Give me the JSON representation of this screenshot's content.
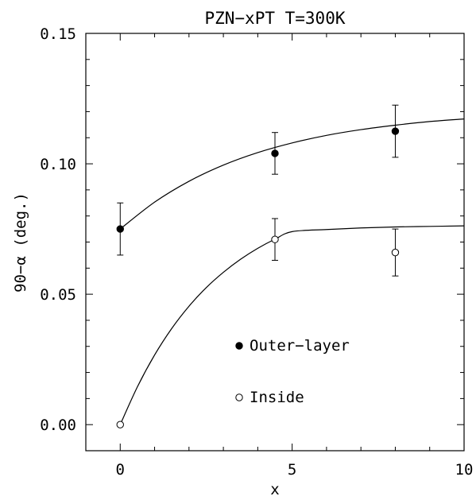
{
  "chart_data": {
    "type": "scatter",
    "title": "PZN−xPT T=300K",
    "xlabel": "x",
    "ylabel": "90−α (deg.)",
    "xlim": [
      -1,
      10
    ],
    "ylim": [
      -0.01,
      0.15
    ],
    "x_ticks": [
      0,
      5,
      10
    ],
    "x_tick_labels": [
      "0",
      "5",
      "10"
    ],
    "y_ticks": [
      0.0,
      0.05,
      0.1,
      0.15
    ],
    "y_tick_labels": [
      "0.00",
      "0.05",
      "0.10",
      "0.15"
    ],
    "grid": false,
    "legend_position": "lower-center",
    "series": [
      {
        "name": "Outer−layer",
        "marker": "filled-circle",
        "x": [
          0,
          4.5,
          8
        ],
        "y": [
          0.075,
          0.104,
          0.1125
        ],
        "yerr": [
          0.01,
          0.008,
          0.01
        ],
        "fit_curve": {
          "x": [
            0,
            1,
            2,
            3,
            4,
            5,
            6,
            7,
            8,
            9,
            10
          ],
          "y": [
            0.075,
            0.0853,
            0.0933,
            0.0995,
            0.1043,
            0.108,
            0.1109,
            0.1131,
            0.1148,
            0.1162,
            0.1172
          ]
        }
      },
      {
        "name": "Inside",
        "marker": "open-circle",
        "x": [
          0,
          4.5,
          8
        ],
        "y": [
          0.0,
          0.071,
          0.066
        ],
        "yerr": [
          0.0,
          0.008,
          0.009
        ],
        "fit_curve": {
          "x": [
            0,
            0.5,
            1,
            1.5,
            2,
            2.5,
            3,
            3.5,
            4,
            4.5,
            5,
            6,
            7,
            8,
            9,
            10
          ],
          "y": [
            0.0,
            0.0145,
            0.0267,
            0.0369,
            0.0454,
            0.0525,
            0.0584,
            0.0634,
            0.0676,
            0.0711,
            0.074,
            0.0748,
            0.0754,
            0.0758,
            0.076,
            0.0762
          ]
        }
      }
    ]
  }
}
